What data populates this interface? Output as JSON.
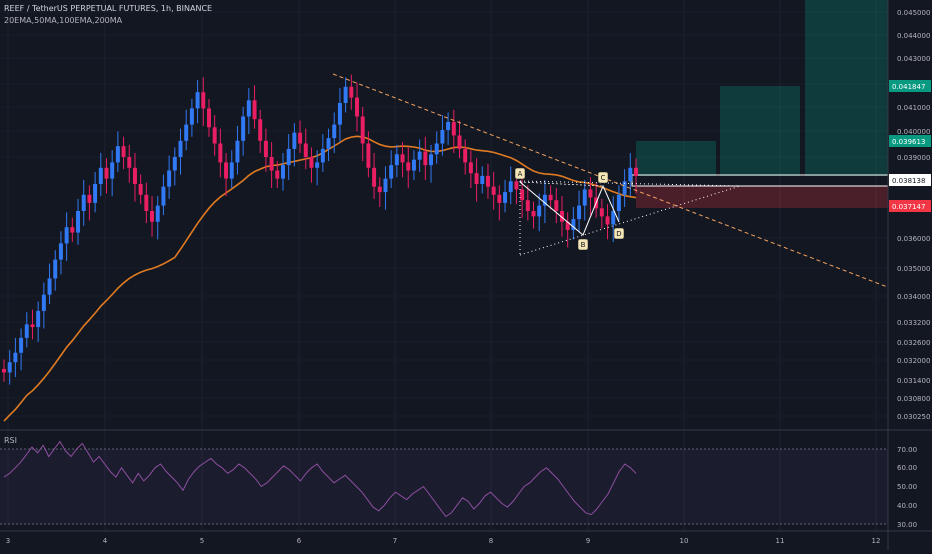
{
  "chart_data": {
    "type": "candlestick",
    "title": "REEF / TetherUS PERPETUAL FUTURES, 1h, BINANCE",
    "indicators": "20EMA,50MA,100EMA,200MA",
    "x_ticks": [
      "3",
      "4",
      "5",
      "6",
      "7",
      "8",
      "9",
      "10",
      "11",
      "12"
    ],
    "y_ticks": [
      "0.045000",
      "0.044000",
      "0.043000",
      "0.042000",
      "0.041000",
      "0.040000",
      "0.039000",
      "0.036000",
      "0.035000",
      "0.034000",
      "0.033200",
      "0.032600",
      "0.032000",
      "0.031400",
      "0.030800",
      "0.030250"
    ],
    "price_labels": [
      {
        "value": "0.041847",
        "color": "#089981"
      },
      {
        "value": "0.039613",
        "color": "#089981"
      },
      {
        "value": "0.038138",
        "color": "#ffffff"
      },
      {
        "value": "0.037147",
        "color": "#f23645"
      }
    ],
    "pattern_points": [
      "A",
      "B",
      "C",
      "D"
    ],
    "colors": {
      "up": "#3179f5",
      "down": "#e91e63",
      "ma": "#e07b22",
      "rsi": "#8e4fa0",
      "trend": "#f3a260"
    },
    "rsi": {
      "label": "RSI",
      "y_ticks": [
        "70.00",
        "60.00",
        "50.00",
        "40.00",
        "30.00"
      ],
      "values": [
        55,
        57,
        60,
        63,
        67,
        71,
        68,
        72,
        66,
        70,
        74,
        69,
        66,
        70,
        73,
        68,
        63,
        66,
        62,
        58,
        55,
        60,
        56,
        52,
        57,
        53,
        56,
        60,
        62,
        58,
        55,
        52,
        48,
        54,
        58,
        61,
        63,
        65,
        62,
        60,
        57,
        59,
        62,
        60,
        57,
        54,
        50,
        52,
        55,
        58,
        61,
        59,
        56,
        53,
        57,
        60,
        62,
        58,
        55,
        52,
        54,
        56,
        53,
        50,
        47,
        43,
        39,
        37,
        40,
        44,
        47,
        45,
        43,
        46,
        48,
        50,
        46,
        42,
        38,
        34,
        36,
        40,
        44,
        42,
        38,
        41,
        45,
        47,
        44,
        41,
        39,
        42,
        46,
        50,
        52,
        55,
        58,
        60,
        57,
        54,
        50,
        46,
        42,
        39,
        36,
        35,
        38,
        42,
        46,
        52,
        58,
        62,
        60,
        57
      ]
    },
    "bars": [
      [
        0.03115,
        0.03102
      ],
      [
        0.03102,
        0.0314
      ],
      [
        0.0314,
        0.03175
      ],
      [
        0.03175,
        0.0323
      ],
      [
        0.0323,
        0.0328
      ],
      [
        0.0328,
        0.0327
      ],
      [
        0.0327,
        0.0333
      ],
      [
        0.0333,
        0.0339
      ],
      [
        0.0339,
        0.0345
      ],
      [
        0.0345,
        0.0352
      ],
      [
        0.0352,
        0.0358
      ],
      [
        0.0358,
        0.0364
      ],
      [
        0.0364,
        0.0362
      ],
      [
        0.0362,
        0.037
      ],
      [
        0.037,
        0.0376
      ],
      [
        0.0376,
        0.0373
      ],
      [
        0.0373,
        0.038
      ],
      [
        0.038,
        0.0386
      ],
      [
        0.0386,
        0.0382
      ],
      [
        0.0382,
        0.0388
      ],
      [
        0.0388,
        0.0394
      ],
      [
        0.0394,
        0.039
      ],
      [
        0.039,
        0.0386
      ],
      [
        0.0386,
        0.038
      ],
      [
        0.038,
        0.0376
      ],
      [
        0.0376,
        0.037
      ],
      [
        0.037,
        0.0366
      ],
      [
        0.0366,
        0.0372
      ],
      [
        0.0372,
        0.0379
      ],
      [
        0.0379,
        0.0385
      ],
      [
        0.0385,
        0.039
      ],
      [
        0.039,
        0.0396
      ],
      [
        0.0396,
        0.0402
      ],
      [
        0.0402,
        0.0408
      ],
      [
        0.0408,
        0.0414
      ],
      [
        0.0414,
        0.0408
      ],
      [
        0.0408,
        0.0401
      ],
      [
        0.0401,
        0.0395
      ],
      [
        0.0395,
        0.0388
      ],
      [
        0.0388,
        0.0382
      ],
      [
        0.0382,
        0.0388
      ],
      [
        0.0388,
        0.0396
      ],
      [
        0.0396,
        0.0405
      ],
      [
        0.0405,
        0.0411
      ],
      [
        0.0411,
        0.0404
      ],
      [
        0.0404,
        0.0396
      ],
      [
        0.0396,
        0.039
      ],
      [
        0.039,
        0.0385
      ],
      [
        0.0385,
        0.0382
      ],
      [
        0.0382,
        0.0387
      ],
      [
        0.0387,
        0.0393
      ],
      [
        0.0393,
        0.0399
      ],
      [
        0.0399,
        0.0395
      ],
      [
        0.0395,
        0.039
      ],
      [
        0.039,
        0.0386
      ],
      [
        0.0386,
        0.0388
      ],
      [
        0.0388,
        0.0393
      ],
      [
        0.0393,
        0.0397
      ],
      [
        0.0397,
        0.0402
      ],
      [
        0.0402,
        0.041
      ],
      [
        0.041,
        0.0416
      ],
      [
        0.0416,
        0.0412
      ],
      [
        0.0412,
        0.0405
      ],
      [
        0.0405,
        0.0395
      ],
      [
        0.0395,
        0.0386
      ],
      [
        0.0386,
        0.0379
      ],
      [
        0.0379,
        0.0377
      ],
      [
        0.0377,
        0.0382
      ],
      [
        0.0382,
        0.0387
      ],
      [
        0.0387,
        0.0391
      ],
      [
        0.0391,
        0.0388
      ],
      [
        0.0388,
        0.0385
      ],
      [
        0.0385,
        0.0389
      ],
      [
        0.0389,
        0.0392
      ],
      [
        0.0392,
        0.0387
      ],
      [
        0.0387,
        0.0391
      ],
      [
        0.0391,
        0.0395
      ],
      [
        0.0395,
        0.04
      ],
      [
        0.04,
        0.0403
      ],
      [
        0.0403,
        0.0398
      ],
      [
        0.0398,
        0.0393
      ],
      [
        0.0393,
        0.0388
      ],
      [
        0.0388,
        0.0384
      ],
      [
        0.0384,
        0.038
      ],
      [
        0.038,
        0.0383
      ],
      [
        0.0383,
        0.0379
      ],
      [
        0.0379,
        0.0376
      ],
      [
        0.0376,
        0.0373
      ],
      [
        0.0373,
        0.0377
      ],
      [
        0.0377,
        0.0381
      ],
      [
        0.0381,
        0.0378
      ],
      [
        0.0378,
        0.0374
      ],
      [
        0.0374,
        0.037
      ],
      [
        0.037,
        0.0368
      ],
      [
        0.0368,
        0.0372
      ],
      [
        0.0372,
        0.0376
      ],
      [
        0.0376,
        0.0374
      ],
      [
        0.0374,
        0.037
      ],
      [
        0.037,
        0.0366
      ],
      [
        0.0366,
        0.0363
      ],
      [
        0.0363,
        0.0367
      ],
      [
        0.0367,
        0.0372
      ],
      [
        0.0372,
        0.0378
      ],
      [
        0.0378,
        0.0375
      ],
      [
        0.0375,
        0.0371
      ],
      [
        0.0371,
        0.0368
      ],
      [
        0.0368,
        0.0365
      ],
      [
        0.0365,
        0.037
      ],
      [
        0.037,
        0.0376
      ],
      [
        0.0376,
        0.0381
      ],
      [
        0.0381,
        0.0386
      ],
      [
        0.0386,
        0.0383
      ]
    ]
  }
}
